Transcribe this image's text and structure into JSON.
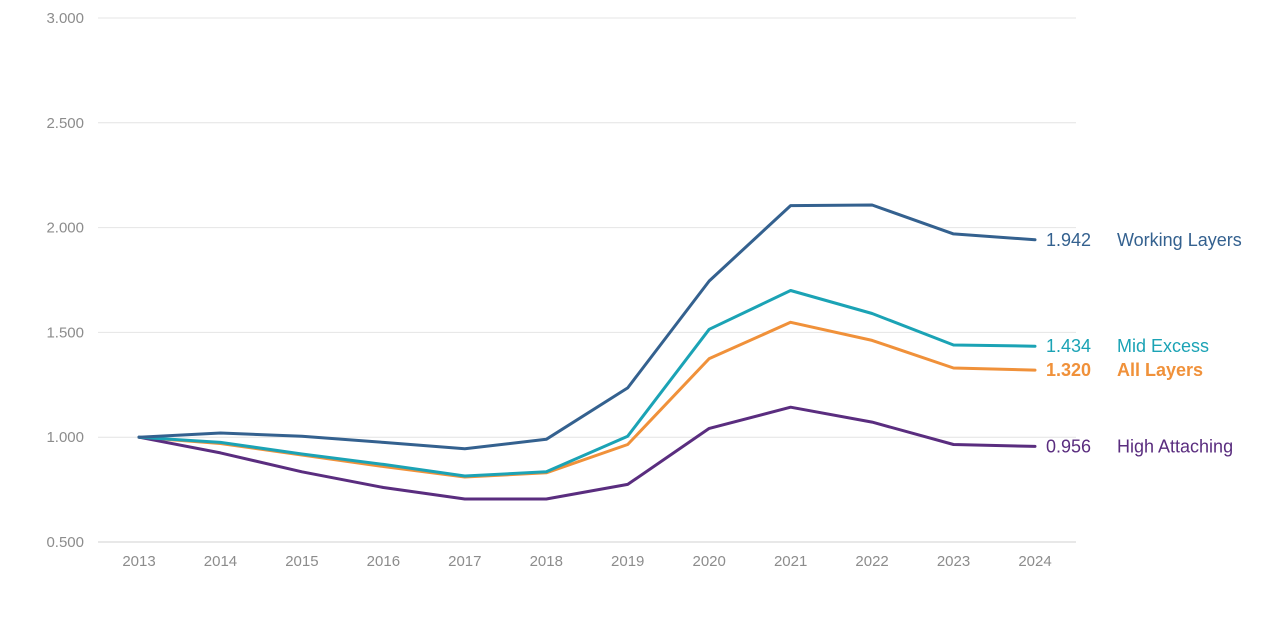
{
  "chart_data": {
    "type": "line",
    "x": [
      2013,
      2014,
      2015,
      2016,
      2017,
      2018,
      2019,
      2020,
      2021,
      2022,
      2023,
      2024
    ],
    "x_tick_labels": [
      "2013",
      "2014",
      "2015",
      "2016",
      "2017",
      "2018",
      "2019",
      "2020",
      "2021",
      "2022",
      "2023",
      "2024"
    ],
    "y_tick_labels": [
      "3.000",
      "2.500",
      "2.000",
      "1.500",
      "1.000",
      "0.500"
    ],
    "y_ticks": [
      3.0,
      2.5,
      2.0,
      1.5,
      1.0,
      0.5
    ],
    "ylim": [
      0.5,
      3.0
    ],
    "grid": "horizontal",
    "legend": "labels at line ends (right)",
    "series": [
      {
        "name": "Working Layers",
        "end_label": "1.942",
        "color": "#34618f",
        "bold": false,
        "values": [
          1.0,
          1.02,
          1.005,
          0.975,
          0.945,
          0.99,
          1.235,
          1.745,
          2.105,
          2.108,
          1.97,
          1.942
        ]
      },
      {
        "name": "Mid Excess",
        "end_label": "1.434",
        "color": "#1ba3b5",
        "bold": false,
        "values": [
          1.0,
          0.975,
          0.92,
          0.87,
          0.815,
          0.835,
          1.005,
          1.515,
          1.7,
          1.59,
          1.44,
          1.434
        ]
      },
      {
        "name": "All Layers",
        "end_label": "1.320",
        "color": "#f0913a",
        "bold": true,
        "values": [
          1.0,
          0.97,
          0.915,
          0.86,
          0.81,
          0.83,
          0.965,
          1.375,
          1.548,
          1.462,
          1.33,
          1.32
        ]
      },
      {
        "name": "High Attaching",
        "end_label": "0.956",
        "color": "#5a2d7f",
        "bold": false,
        "values": [
          1.0,
          0.925,
          0.835,
          0.76,
          0.705,
          0.705,
          0.775,
          1.042,
          1.143,
          1.072,
          0.965,
          0.956
        ]
      }
    ]
  }
}
